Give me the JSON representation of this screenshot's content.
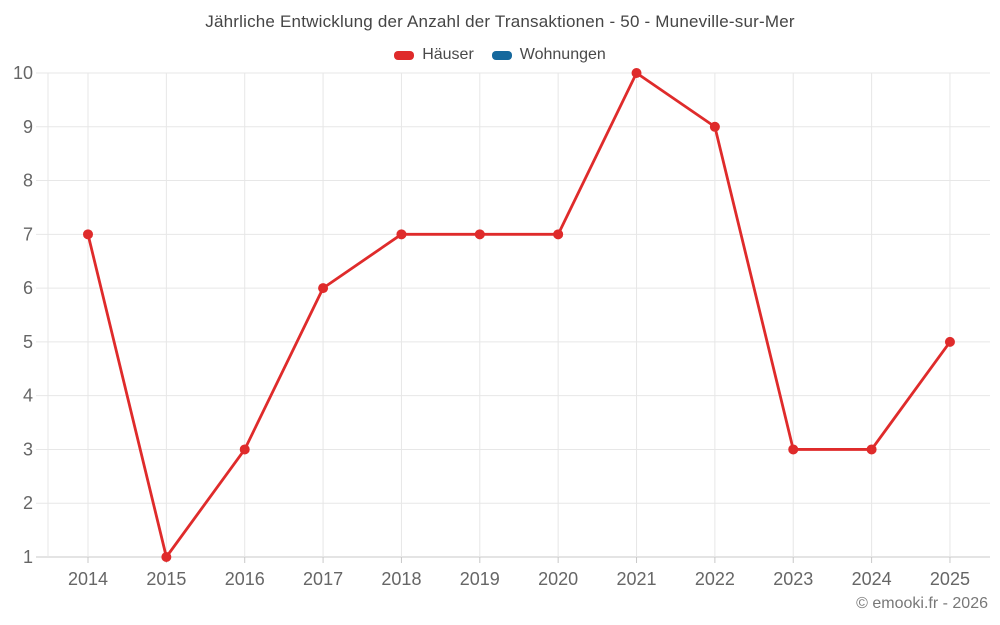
{
  "chart": {
    "title": "Jährliche Entwicklung der Anzahl der Transaktionen - 50 - Muneville-sur-Mer",
    "legend": [
      {
        "label": "Häuser",
        "color": "#df2b2b"
      },
      {
        "label": "Wohnungen",
        "color": "#15689d"
      }
    ],
    "footer_credit": "© emooki.fr - 2026"
  },
  "chart_data": {
    "type": "line",
    "title": "Jährliche Entwicklung der Anzahl der Transaktionen - 50 - Muneville-sur-Mer",
    "categories": [
      2014,
      2015,
      2016,
      2017,
      2018,
      2019,
      2020,
      2021,
      2022,
      2023,
      2024,
      2025
    ],
    "series": [
      {
        "name": "Häuser",
        "color": "#df2b2b",
        "values": [
          7,
          1,
          3,
          6,
          7,
          7,
          7,
          10,
          9,
          3,
          3,
          5
        ]
      },
      {
        "name": "Wohnungen",
        "color": "#15689d",
        "values": []
      }
    ],
    "xlabel": "",
    "ylabel": "",
    "ylim": [
      1,
      10
    ],
    "yticks": [
      1,
      2,
      3,
      4,
      5,
      6,
      7,
      8,
      9,
      10
    ],
    "grid": true,
    "legend_position": "top",
    "marker": "circle"
  },
  "colors": {
    "grid": "#e7e7e7",
    "axis": "#c8c8c8",
    "tick_label": "#666666",
    "title_text": "#454545",
    "credit_text": "#787878",
    "background": "#ffffff"
  }
}
